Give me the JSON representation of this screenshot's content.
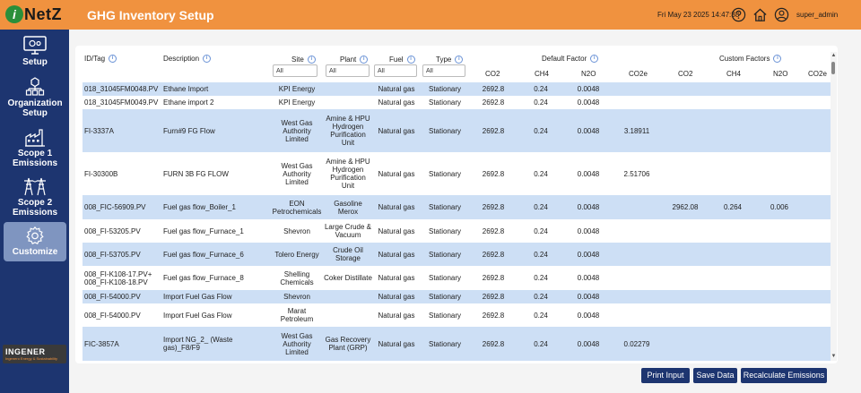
{
  "header": {
    "logo_text": "NetZ",
    "logo_mark": "i",
    "title": "GHG Inventory Setup",
    "datetime": "Fri May 23 2025 14:47:38",
    "username": "super_admin",
    "icons": [
      "help-icon",
      "home-icon",
      "user-icon"
    ]
  },
  "sidebar": {
    "items": [
      {
        "label_line1": "Setup",
        "label_line2": "",
        "icon": "monitor-gear-icon"
      },
      {
        "label_line1": "Organization",
        "label_line2": "Setup",
        "icon": "org-tree-icon"
      },
      {
        "label_line1": "Scope 1",
        "label_line2": "Emissions",
        "icon": "factory-icon"
      },
      {
        "label_line1": "Scope 2",
        "label_line2": "Emissions",
        "icon": "power-tower-icon"
      },
      {
        "label_line1": "Customize",
        "label_line2": "",
        "icon": "gear-icon"
      }
    ],
    "brand": "INGENER",
    "brand_sub": "Ingenero Energy & Sustainability"
  },
  "table": {
    "headers": {
      "id_tag": "ID/Tag",
      "description": "Description",
      "site": "Site",
      "plant": "Plant",
      "fuel": "Fuel",
      "type": "Type",
      "default_factor": "Default Factor",
      "custom_factors": "Custom Factors",
      "co2": "CO2",
      "ch4": "CH4",
      "n2o": "N2O",
      "co2e": "CO2e"
    },
    "filters": {
      "site": "All",
      "plant": "All",
      "fuel": "All",
      "type": "All"
    },
    "rows": [
      {
        "id": "018_31045FM0048.PV",
        "desc": "Ethane Import",
        "site": "KPI Energy",
        "plant": "",
        "fuel": "Natural gas",
        "type": "Stationary",
        "d_co2": "2692.8",
        "d_ch4": "0.24",
        "d_n2o": "0.0048",
        "d_co2e": "",
        "c_co2": "",
        "c_ch4": "",
        "c_n2o": "",
        "c_co2e": ""
      },
      {
        "id": "018_31045FM0049.PV",
        "desc": "Ethane import 2",
        "site": "KPI Energy",
        "plant": "",
        "fuel": "Natural gas",
        "type": "Stationary",
        "d_co2": "2692.8",
        "d_ch4": "0.24",
        "d_n2o": "0.0048",
        "d_co2e": "",
        "c_co2": "",
        "c_ch4": "",
        "c_n2o": "",
        "c_co2e": ""
      },
      {
        "id": "FI-3337A",
        "desc": "Furn#9 FG Flow",
        "site": "West Gas Authority Limited",
        "plant": "Amine & HPU Hydrogen Purification Unit",
        "fuel": "Natural gas",
        "type": "Stationary",
        "d_co2": "2692.8",
        "d_ch4": "0.24",
        "d_n2o": "0.0048",
        "d_co2e": "3.18911",
        "c_co2": "",
        "c_ch4": "",
        "c_n2o": "",
        "c_co2e": ""
      },
      {
        "id": "FI-30300B",
        "desc": "FURN 3B FG FLOW",
        "site": "West Gas Authority Limited",
        "plant": "Amine & HPU Hydrogen Purification Unit",
        "fuel": "Natural gas",
        "type": "Stationary",
        "d_co2": "2692.8",
        "d_ch4": "0.24",
        "d_n2o": "0.0048",
        "d_co2e": "2.51706",
        "c_co2": "",
        "c_ch4": "",
        "c_n2o": "",
        "c_co2e": ""
      },
      {
        "id": "008_FIC-56909.PV",
        "desc": "Fuel gas flow_Boiler_1",
        "site": "EON Petrochemicals",
        "plant": "Gasoline Merox",
        "fuel": "Natural gas",
        "type": "Stationary",
        "d_co2": "2692.8",
        "d_ch4": "0.24",
        "d_n2o": "0.0048",
        "d_co2e": "",
        "c_co2": "2962.08",
        "c_ch4": "0.264",
        "c_n2o": "0.006",
        "c_co2e": ""
      },
      {
        "id": "008_FI-53205.PV",
        "desc": "Fuel gas flow_Furnace_1",
        "site": "Shevron",
        "plant": "Large Crude & Vacuum",
        "fuel": "Natural gas",
        "type": "Stationary",
        "d_co2": "2692.8",
        "d_ch4": "0.24",
        "d_n2o": "0.0048",
        "d_co2e": "",
        "c_co2": "",
        "c_ch4": "",
        "c_n2o": "",
        "c_co2e": ""
      },
      {
        "id": "008_FI-53705.PV",
        "desc": "Fuel gas flow_Furnace_6",
        "site": "Tolero Energy",
        "plant": "Crude Oil Storage",
        "fuel": "Natural gas",
        "type": "Stationary",
        "d_co2": "2692.8",
        "d_ch4": "0.24",
        "d_n2o": "0.0048",
        "d_co2e": "",
        "c_co2": "",
        "c_ch4": "",
        "c_n2o": "",
        "c_co2e": ""
      },
      {
        "id": "008_FI-K108-17.PV+ 008_FI-K108-18.PV",
        "desc": "Fuel gas flow_Furnace_8",
        "site": "Shelling Chemicals",
        "plant": "Coker Distillate",
        "fuel": "Natural gas",
        "type": "Stationary",
        "d_co2": "2692.8",
        "d_ch4": "0.24",
        "d_n2o": "0.0048",
        "d_co2e": "",
        "c_co2": "",
        "c_ch4": "",
        "c_n2o": "",
        "c_co2e": ""
      },
      {
        "id": "008_FI-54000.PV",
        "desc": "Import Fuel Gas Flow",
        "site": "Shevron",
        "plant": "",
        "fuel": "Natural gas",
        "type": "Stationary",
        "d_co2": "2692.8",
        "d_ch4": "0.24",
        "d_n2o": "0.0048",
        "d_co2e": "",
        "c_co2": "",
        "c_ch4": "",
        "c_n2o": "",
        "c_co2e": ""
      },
      {
        "id": "008_FI-54000.PV",
        "desc": "Import Fuel Gas Flow",
        "site": "Marat Petroleum",
        "plant": "",
        "fuel": "Natural gas",
        "type": "Stationary",
        "d_co2": "2692.8",
        "d_ch4": "0.24",
        "d_n2o": "0.0048",
        "d_co2e": "",
        "c_co2": "",
        "c_ch4": "",
        "c_n2o": "",
        "c_co2e": ""
      },
      {
        "id": "FIC-3857A",
        "desc": "Import NG_2_ (Waste gas)_F8/F9",
        "site": "West Gas Authority Limited",
        "plant": "Gas Recovery Plant (GRP)",
        "fuel": "Natural gas",
        "type": "Stationary",
        "d_co2": "2692.8",
        "d_ch4": "0.24",
        "d_n2o": "0.0048",
        "d_co2e": "0.02279",
        "c_co2": "",
        "c_ch4": "",
        "c_n2o": "",
        "c_co2e": ""
      }
    ]
  },
  "actions": {
    "print_input": "Print Input",
    "save_data": "Save Data",
    "recalculate": "Recalculate Emissions"
  }
}
